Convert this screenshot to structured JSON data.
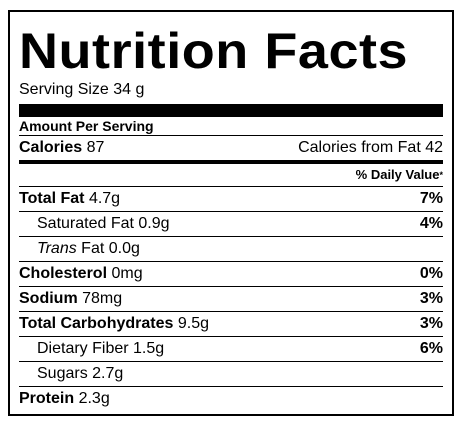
{
  "title": "Nutrition Facts",
  "serving_size": "Serving Size 34 g",
  "amount_per_serving": "Amount Per Serving",
  "calories": {
    "label": "Calories",
    "value": "87",
    "from_fat": "Calories from Fat 42"
  },
  "daily_value_header": "% Daily Value",
  "daily_value_marker": "*",
  "nutrients": [
    {
      "label": "Total Fat",
      "amount": "4.7g",
      "pct": "7%"
    },
    {
      "label": "Saturated Fat",
      "amount": "0.9g",
      "pct": "4%"
    },
    {
      "label": "Trans",
      "label_suffix": "Fat",
      "amount": "0.0g",
      "pct": ""
    },
    {
      "label": "Cholesterol",
      "amount": "0mg",
      "pct": "0%"
    },
    {
      "label": "Sodium",
      "amount": "78mg",
      "pct": "3%"
    },
    {
      "label": "Total Carbohydrates",
      "amount": "9.5g",
      "pct": "3%"
    },
    {
      "label": "Dietary Fiber",
      "amount": "1.5g",
      "pct": "6%"
    },
    {
      "label": "Sugars",
      "amount": "2.7g",
      "pct": ""
    },
    {
      "label": "Protein",
      "amount": "2.3g",
      "pct": ""
    }
  ]
}
